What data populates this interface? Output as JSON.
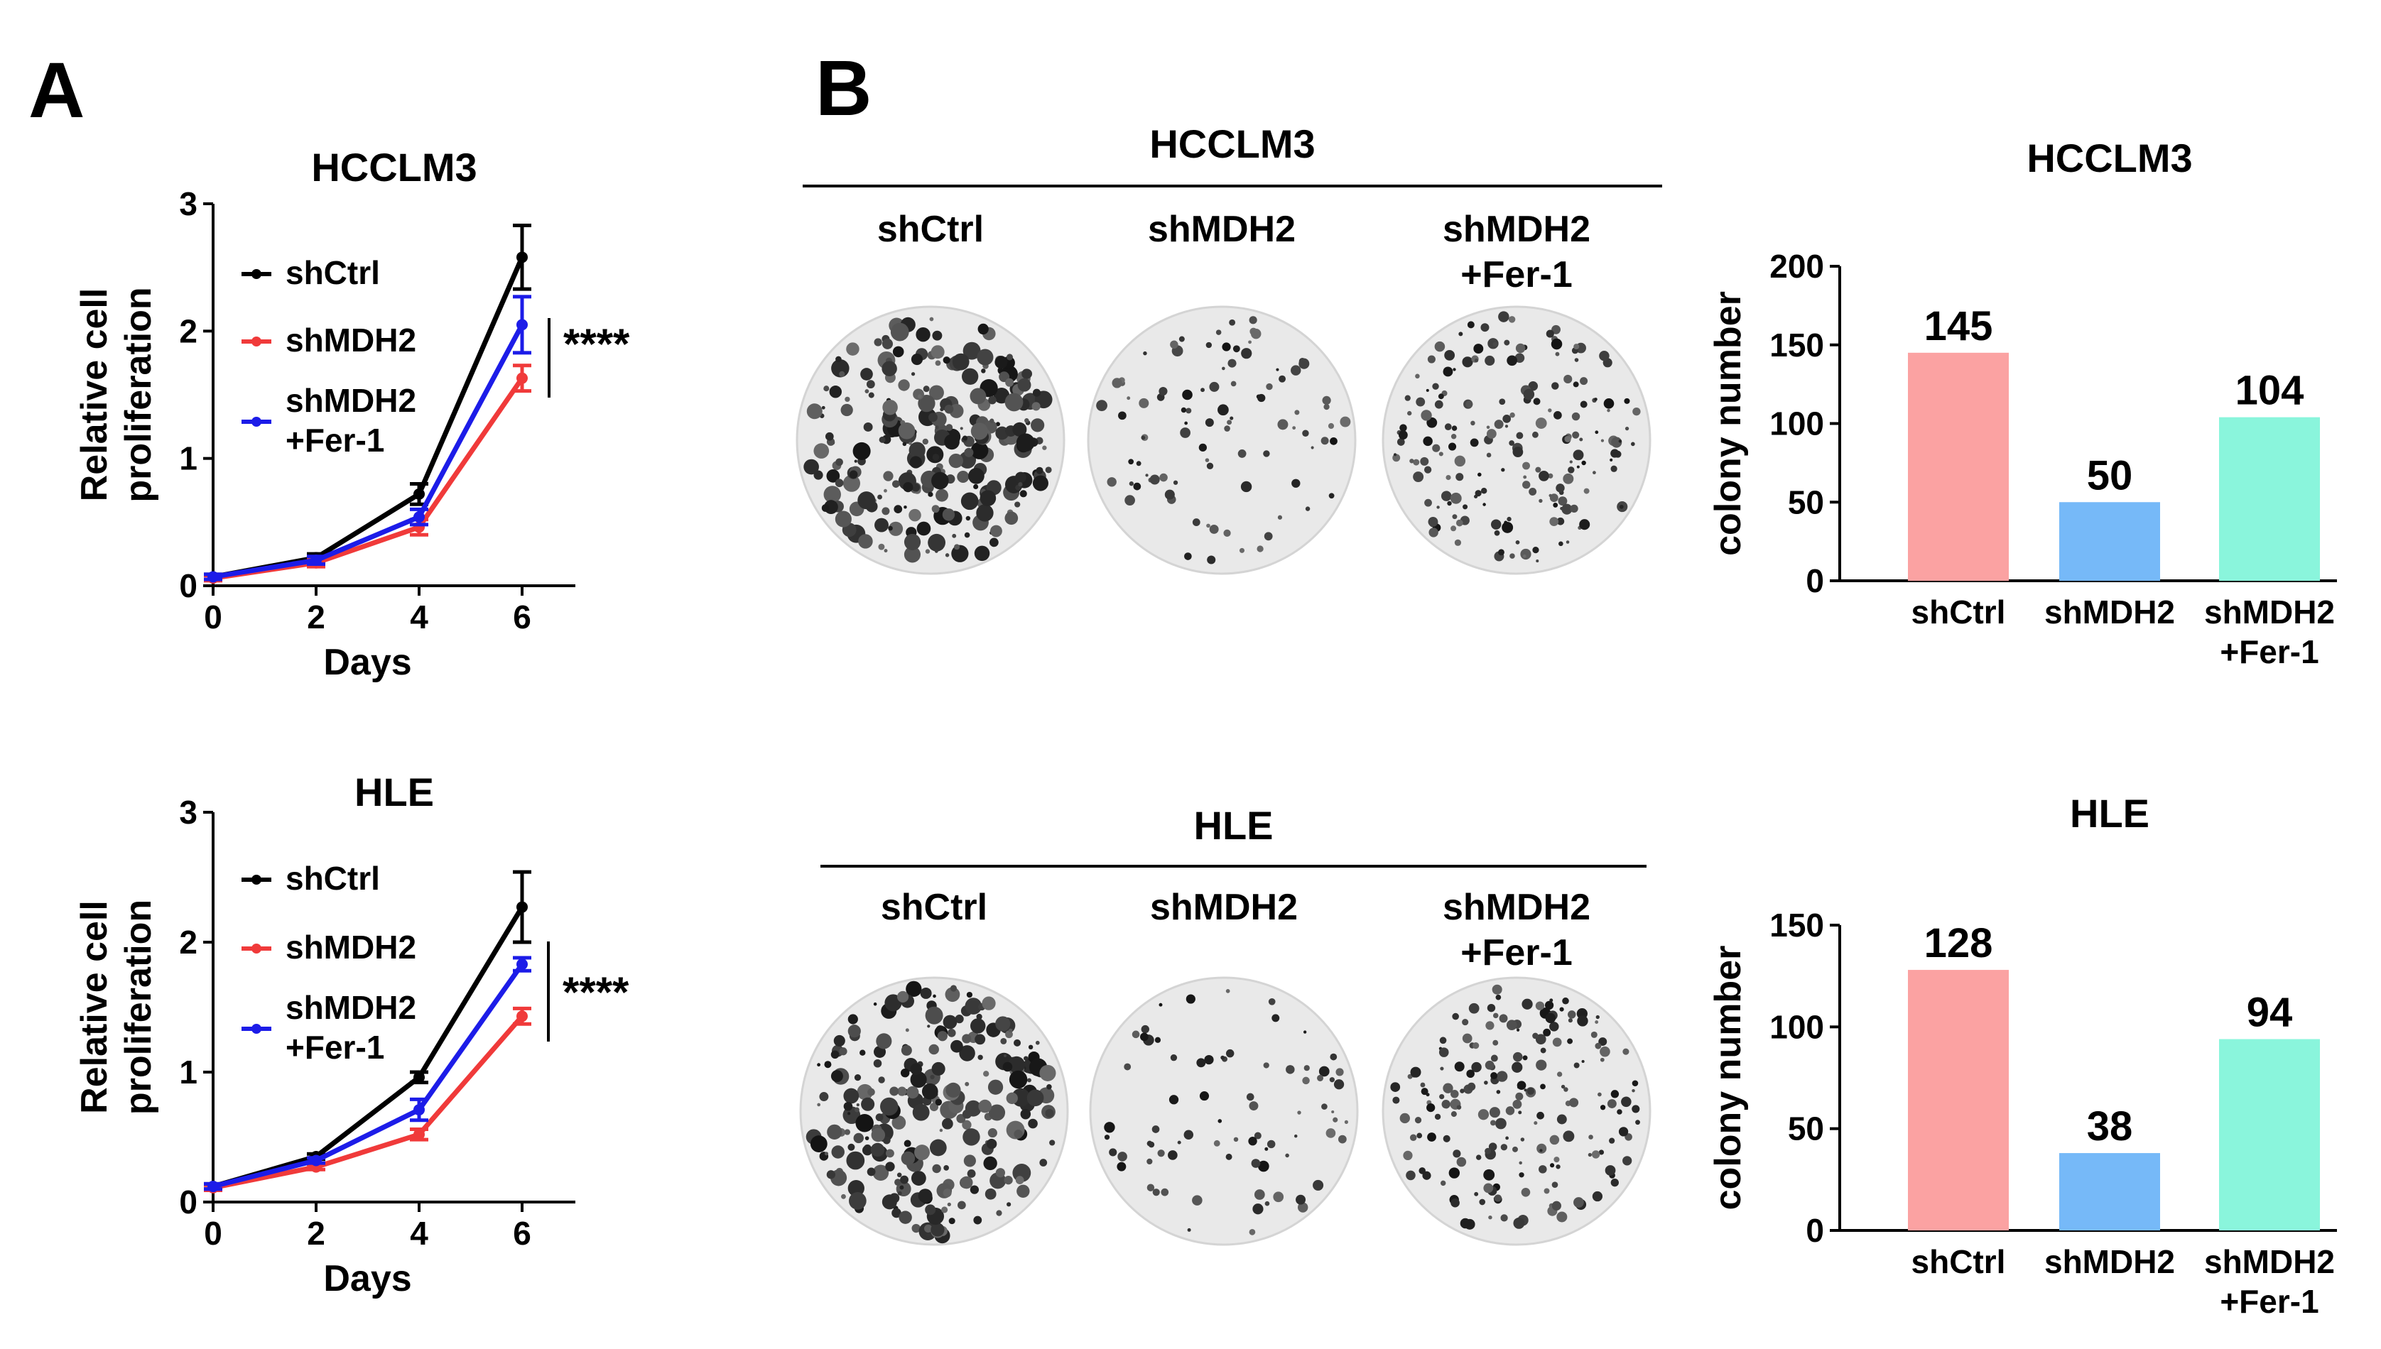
{
  "panels": {
    "a": "A",
    "b": "B"
  },
  "colors": {
    "shCtrl_line": "#000000",
    "shMDH2_line": "#f03a3a",
    "shMDH2_Fer1_line": "#1c1ce8",
    "bar_shCtrl": "#fba2a2",
    "bar_shMDH2": "#76b9f8",
    "bar_shMDH2_Fer1": "#8af5dc"
  },
  "colony_plates": [
    {
      "title": "HCCLM3",
      "headers": [
        {
          "lines": [
            "shCtrl"
          ]
        },
        {
          "lines": [
            "shMDH2"
          ]
        },
        {
          "lines": [
            "shMDH2",
            "+Fer-1"
          ]
        }
      ],
      "plate_image_names": [
        "shCtrl colony plate",
        "shMDH2 colony plate",
        "shMDH2 +Fer-1 colony plate"
      ],
      "colony_density": [
        1.0,
        0.35,
        0.72
      ]
    },
    {
      "title": "HLE",
      "headers": [
        {
          "lines": [
            "shCtrl"
          ]
        },
        {
          "lines": [
            "shMDH2"
          ]
        },
        {
          "lines": [
            "shMDH2",
            "+Fer-1"
          ]
        }
      ],
      "plate_image_names": [
        "shCtrl colony plate",
        "shMDH2 colony plate",
        "shMDH2 +Fer-1 colony plate"
      ],
      "colony_density": [
        1.0,
        0.3,
        0.73
      ]
    }
  ],
  "chart_data": [
    {
      "type": "line",
      "title": "HCCLM3",
      "xlabel": "Days",
      "ylabel_lines": [
        "Relative cell",
        "proliferation"
      ],
      "x": [
        0,
        2,
        4,
        6
      ],
      "xticks": [
        "0",
        "2",
        "4",
        "6"
      ],
      "yticks": [
        "0",
        "1",
        "2",
        "3"
      ],
      "xlim": [
        0,
        6
      ],
      "ylim": [
        0,
        3
      ],
      "series": [
        {
          "name": "shCtrl",
          "values": [
            0.07,
            0.22,
            0.72,
            2.58
          ],
          "err": [
            0.02,
            0.03,
            0.08,
            0.25
          ]
        },
        {
          "name": "shMDH2",
          "values": [
            0.06,
            0.18,
            0.46,
            1.63
          ],
          "err": [
            0.02,
            0.03,
            0.06,
            0.1
          ]
        },
        {
          "name": "shMDH2 +Fer-1",
          "legend_lines": [
            "shMDH2",
            "+Fer-1"
          ],
          "values": [
            0.07,
            0.2,
            0.54,
            2.05
          ],
          "err": [
            0.02,
            0.03,
            0.06,
            0.22
          ]
        }
      ],
      "significance": "****"
    },
    {
      "type": "line",
      "title": "HLE",
      "xlabel": "Days",
      "ylabel_lines": [
        "Relative cell",
        "proliferation"
      ],
      "x": [
        0,
        2,
        4,
        6
      ],
      "xticks": [
        "0",
        "2",
        "4",
        "6"
      ],
      "yticks": [
        "0",
        "1",
        "2",
        "3"
      ],
      "xlim": [
        0,
        6
      ],
      "ylim": [
        0,
        3
      ],
      "series": [
        {
          "name": "shCtrl",
          "values": [
            0.12,
            0.35,
            0.96,
            2.27
          ],
          "err": [
            0.02,
            0.02,
            0.04,
            0.27
          ]
        },
        {
          "name": "shMDH2",
          "values": [
            0.11,
            0.27,
            0.52,
            1.43
          ],
          "err": [
            0.02,
            0.02,
            0.04,
            0.06
          ]
        },
        {
          "name": "shMDH2 +Fer-1",
          "legend_lines": [
            "shMDH2",
            "+Fer-1"
          ],
          "values": [
            0.12,
            0.32,
            0.71,
            1.83
          ],
          "err": [
            0.02,
            0.02,
            0.08,
            0.05
          ]
        }
      ],
      "significance": "****"
    },
    {
      "type": "bar",
      "title": "HCCLM3",
      "ylabel": "colony number",
      "categories": [
        "shCtrl",
        "shMDH2",
        "shMDH2 +Fer-1"
      ],
      "category_lines": [
        [
          "shCtrl"
        ],
        [
          "shMDH2"
        ],
        [
          "shMDH2",
          "+Fer-1"
        ]
      ],
      "values": [
        145,
        50,
        104
      ],
      "value_labels": [
        "145",
        "50",
        "104"
      ],
      "yticks": [
        "0",
        "50",
        "100",
        "150",
        "200"
      ],
      "ylim": [
        0,
        200
      ]
    },
    {
      "type": "bar",
      "title": "HLE",
      "ylabel": "colony number",
      "categories": [
        "shCtrl",
        "shMDH2",
        "shMDH2 +Fer-1"
      ],
      "category_lines": [
        [
          "shCtrl"
        ],
        [
          "shMDH2"
        ],
        [
          "shMDH2",
          "+Fer-1"
        ]
      ],
      "values": [
        128,
        38,
        94
      ],
      "value_labels": [
        "128",
        "38",
        "94"
      ],
      "yticks": [
        "0",
        "50",
        "100",
        "150"
      ],
      "ylim": [
        0,
        150
      ]
    }
  ]
}
